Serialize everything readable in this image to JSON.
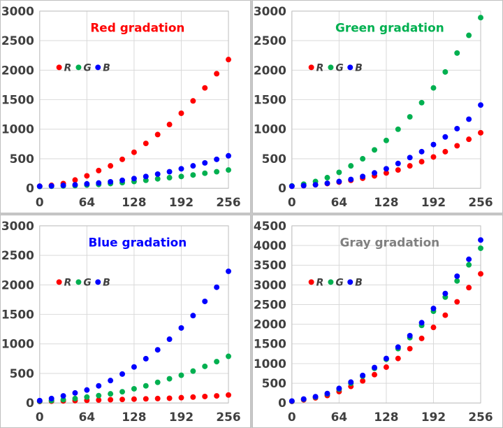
{
  "chart_data": [
    {
      "type": "scatter",
      "title": "Red gradation",
      "title_color": "#ff0000",
      "x": [
        0,
        16,
        32,
        48,
        64,
        80,
        96,
        112,
        128,
        144,
        160,
        176,
        192,
        208,
        224,
        240,
        256
      ],
      "xticks": [
        "0",
        "64",
        "128",
        "192",
        "256"
      ],
      "xlim": [
        0,
        256
      ],
      "ylim": [
        0,
        3000
      ],
      "yticks": [
        "0",
        "500",
        "1000",
        "1500",
        "2000",
        "2500",
        "3000"
      ],
      "grid": true,
      "legend_position": "top-left",
      "series": [
        {
          "name": "R",
          "color": "#ff0000",
          "values": [
            35,
            50,
            80,
            140,
            210,
            300,
            380,
            490,
            610,
            760,
            910,
            1080,
            1270,
            1480,
            1700,
            1940,
            2180
          ]
        },
        {
          "name": "G",
          "color": "#00b050",
          "values": [
            30,
            35,
            40,
            45,
            55,
            65,
            80,
            95,
            115,
            135,
            160,
            180,
            200,
            225,
            255,
            280,
            310
          ]
        },
        {
          "name": "B",
          "color": "#0000ff",
          "values": [
            35,
            40,
            50,
            60,
            75,
            90,
            110,
            135,
            165,
            200,
            240,
            280,
            330,
            380,
            430,
            490,
            550
          ]
        }
      ]
    },
    {
      "type": "scatter",
      "title": "Green gradation",
      "title_color": "#00b050",
      "x": [
        0,
        16,
        32,
        48,
        64,
        80,
        96,
        112,
        128,
        144,
        160,
        176,
        192,
        208,
        224,
        240,
        256
      ],
      "xticks": [
        "0",
        "64",
        "128",
        "192",
        "256"
      ],
      "xlim": [
        0,
        256
      ],
      "ylim": [
        0,
        3000
      ],
      "yticks": [
        "0",
        "500",
        "1000",
        "1500",
        "2000",
        "2500",
        "3000"
      ],
      "grid": true,
      "legend_position": "top-left",
      "series": [
        {
          "name": "R",
          "color": "#ff0000",
          "values": [
            35,
            45,
            60,
            80,
            105,
            135,
            170,
            210,
            260,
            310,
            380,
            450,
            530,
            620,
            720,
            830,
            940
          ]
        },
        {
          "name": "G",
          "color": "#00b050",
          "values": [
            40,
            70,
            115,
            180,
            270,
            380,
            500,
            650,
            810,
            1000,
            1210,
            1450,
            1700,
            1970,
            2290,
            2590,
            2890
          ]
        },
        {
          "name": "B",
          "color": "#0000ff",
          "values": [
            35,
            45,
            60,
            85,
            115,
            150,
            200,
            260,
            330,
            420,
            520,
            620,
            740,
            870,
            1010,
            1170,
            1410
          ]
        }
      ]
    },
    {
      "type": "scatter",
      "title": "Blue gradation",
      "title_color": "#0000ff",
      "x": [
        0,
        16,
        32,
        48,
        64,
        80,
        96,
        112,
        128,
        144,
        160,
        176,
        192,
        208,
        224,
        240,
        256
      ],
      "xticks": [
        "0",
        "64",
        "128",
        "192",
        "256"
      ],
      "xlim": [
        0,
        256
      ],
      "ylim": [
        0,
        3000
      ],
      "yticks": [
        "0",
        "500",
        "1000",
        "1500",
        "2000",
        "2500",
        "3000"
      ],
      "grid": true,
      "legend_position": "top-left",
      "series": [
        {
          "name": "R",
          "color": "#ff0000",
          "values": [
            25,
            30,
            35,
            40,
            45,
            50,
            55,
            60,
            65,
            70,
            75,
            80,
            90,
            100,
            110,
            120,
            135
          ]
        },
        {
          "name": "G",
          "color": "#00b050",
          "values": [
            30,
            40,
            55,
            75,
            100,
            125,
            155,
            190,
            240,
            290,
            350,
            410,
            470,
            540,
            620,
            700,
            790
          ]
        },
        {
          "name": "B",
          "color": "#0000ff",
          "values": [
            40,
            75,
            120,
            170,
            220,
            290,
            380,
            490,
            610,
            750,
            900,
            1080,
            1270,
            1480,
            1720,
            1960,
            2230
          ]
        }
      ]
    },
    {
      "type": "scatter",
      "title": "Gray gradation",
      "title_color": "#808080",
      "x": [
        0,
        16,
        32,
        48,
        64,
        80,
        96,
        112,
        128,
        144,
        160,
        176,
        192,
        208,
        224,
        240,
        256
      ],
      "xticks": [
        "0",
        "64",
        "128",
        "192",
        "256"
      ],
      "xlim": [
        0,
        256
      ],
      "ylim": [
        0,
        4500
      ],
      "yticks": [
        "0",
        "500",
        "1000",
        "1500",
        "2000",
        "2500",
        "3000",
        "3500",
        "4000",
        "4500"
      ],
      "grid": true,
      "legend_position": "top-left",
      "series": [
        {
          "name": "R",
          "color": "#ff0000",
          "values": [
            40,
            80,
            130,
            190,
            290,
            420,
            560,
            720,
            910,
            1130,
            1380,
            1640,
            1920,
            2230,
            2570,
            2930,
            3280
          ]
        },
        {
          "name": "G",
          "color": "#00b050",
          "values": [
            45,
            95,
            150,
            230,
            350,
            500,
            680,
            880,
            1110,
            1380,
            1660,
            1970,
            2330,
            2690,
            3100,
            3510,
            3930
          ]
        },
        {
          "name": "B",
          "color": "#0000ff",
          "values": [
            50,
            100,
            160,
            240,
            370,
            530,
            700,
            900,
            1130,
            1420,
            1710,
            2040,
            2400,
            2780,
            3220,
            3650,
            4140
          ]
        }
      ]
    }
  ]
}
